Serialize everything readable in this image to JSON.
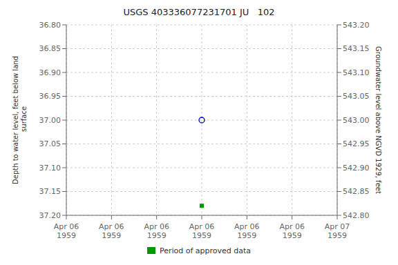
{
  "chart_data": {
    "type": "scatter",
    "title": "USGS 403336077231701 JU   102",
    "y_label": "Depth to water level, feet below land\n surface",
    "y2_label": "Groundwater level above NGVD 1929, feet",
    "categories": [
      "Apr 06\n1959",
      "Apr 06\n1959",
      "Apr 06\n1959",
      "Apr 06\n1959",
      "Apr 06\n1959",
      "Apr 06\n1959",
      "Apr 07\n1959"
    ],
    "series": [
      {
        "color": "#0000cc",
        "marker": "circle",
        "values": [
          null,
          null,
          null,
          37.0,
          null,
          null,
          null
        ]
      },
      {
        "name": "Period of approved data",
        "color": "#009900",
        "marker": "square",
        "values": [
          null,
          null,
          null,
          37.18,
          null,
          null,
          null
        ]
      }
    ],
    "ylim": [
      37.2,
      36.8
    ],
    "yticks": [
      {
        "value": 36.8,
        "label": "36.80"
      },
      {
        "value": 36.85,
        "label": "36.85"
      },
      {
        "value": 36.9,
        "label": "36.90"
      },
      {
        "value": 36.95,
        "label": "36.95"
      },
      {
        "value": 37.0,
        "label": "37.00"
      },
      {
        "value": 37.05,
        "label": "37.05"
      },
      {
        "value": 37.1,
        "label": "37.10"
      },
      {
        "value": 37.15,
        "label": "37.15"
      },
      {
        "value": 37.2,
        "label": "37.20"
      }
    ],
    "y2lim": [
      542.8,
      543.2
    ],
    "y2ticks": [
      {
        "value": 542.8,
        "label": "542.80"
      },
      {
        "value": 542.85,
        "label": "542.85"
      },
      {
        "value": 542.9,
        "label": "542.90"
      },
      {
        "value": 542.95,
        "label": "542.95"
      },
      {
        "value": 543.0,
        "label": "543.00"
      },
      {
        "value": 543.05,
        "label": "543.05"
      },
      {
        "value": 543.1,
        "label": "543.10"
      },
      {
        "value": 543.15,
        "label": "543.15"
      },
      {
        "value": 543.2,
        "label": "543.20"
      }
    ],
    "grid": true,
    "legend": "bottom"
  }
}
